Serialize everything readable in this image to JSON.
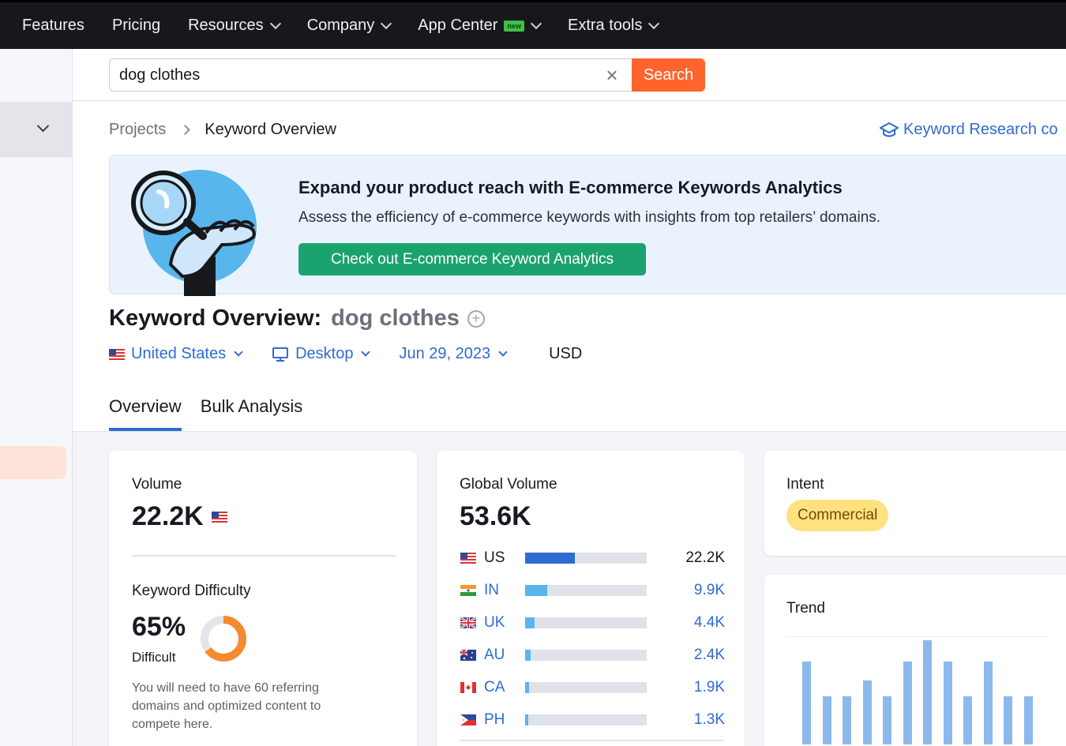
{
  "topnav": {
    "items": [
      {
        "label": "Features",
        "dropdown": false
      },
      {
        "label": "Pricing",
        "dropdown": false
      },
      {
        "label": "Resources",
        "dropdown": true
      },
      {
        "label": "Company",
        "dropdown": true
      },
      {
        "label": "App Center",
        "dropdown": true,
        "badge": "new"
      },
      {
        "label": "Extra tools",
        "dropdown": true
      }
    ]
  },
  "search": {
    "value": "dog clothes",
    "clear_glyph": "×",
    "button_label": "Search"
  },
  "breadcrumb": {
    "parent": "Projects",
    "current": "Keyword Overview"
  },
  "help_link": "Keyword Research co",
  "banner": {
    "title": "Expand your product reach with E-commerce Keywords Analytics",
    "subtitle": "Assess the efficiency of e-commerce keywords with insights from top retailers’ domains.",
    "button_label": "Check out E-commerce Keyword Analytics"
  },
  "overview": {
    "title_prefix": "Keyword Overview:",
    "keyword": "dog clothes",
    "add_glyph": "+"
  },
  "filters": {
    "country": "United States",
    "device": "Desktop",
    "date": "Jun 29, 2023",
    "currency": "USD"
  },
  "tabs": [
    {
      "label": "Overview",
      "active": true
    },
    {
      "label": "Bulk Analysis",
      "active": false
    }
  ],
  "volume_card": {
    "label": "Volume",
    "value": "22.2K",
    "kd_label": "Keyword Difficulty",
    "kd_value": "65%",
    "kd_level": "Difficult",
    "kd_fraction": 0.65,
    "kd_text": "You will need to have 60 referring domains and optimized content to compete here."
  },
  "global_card": {
    "label": "Global Volume",
    "value": "53.6K",
    "rows": [
      {
        "code": "US",
        "value": "22.2K",
        "share": 0.41
      },
      {
        "code": "IN",
        "value": "9.9K",
        "share": 0.18
      },
      {
        "code": "UK",
        "value": "4.4K",
        "share": 0.08
      },
      {
        "code": "AU",
        "value": "2.4K",
        "share": 0.045
      },
      {
        "code": "CA",
        "value": "1.9K",
        "share": 0.035
      },
      {
        "code": "PH",
        "value": "1.3K",
        "share": 0.025
      }
    ]
  },
  "intent_card": {
    "label": "Intent",
    "value": "Commercial"
  },
  "trend_card": {
    "label": "Trend",
    "values": [
      0.78,
      0.45,
      0.45,
      0.6,
      0.45,
      0.78,
      0.98,
      0.78,
      0.45,
      0.78,
      0.45,
      0.45
    ]
  },
  "colors": {
    "accent_blue": "#2f6bd1",
    "search_orange": "#ff642d",
    "banner_green": "#1ba36f",
    "kd_orange": "#f58a2f",
    "intent_yellow": "#ffe17f"
  }
}
